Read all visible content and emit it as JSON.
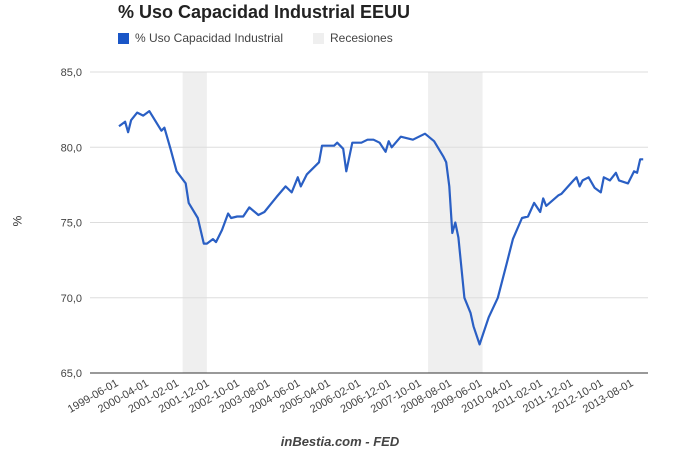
{
  "chart_data": {
    "type": "line",
    "title": "% Uso Capacidad Industrial EEUU",
    "xlabel": "",
    "ylabel": "%",
    "footer": "inBestia.com - FED",
    "ylim": [
      65,
      85
    ],
    "yticks": [
      "65,0",
      "70,0",
      "75,0",
      "80,0",
      "85,0"
    ],
    "ytick_values": [
      65,
      70,
      75,
      80,
      85
    ],
    "x_start": "1999-06",
    "x_end": "2013-11",
    "xticks": [
      "1999-06-01",
      "2000-04-01",
      "2001-02-01",
      "2001-12-01",
      "2002-10-01",
      "2003-08-01",
      "2004-06-01",
      "2005-04-01",
      "2006-02-01",
      "2006-12-01",
      "2007-10-01",
      "2008-08-01",
      "2009-06-01",
      "2010-04-01",
      "2011-02-01",
      "2011-12-01",
      "2012-10-01",
      "2013-08-01"
    ],
    "grid": true,
    "legend_placement": "top-left",
    "legend": [
      {
        "name": "% Uso Capacidad Industrial",
        "color": "#1a56c7"
      },
      {
        "name": "Recesiones",
        "color": "#efefef"
      }
    ],
    "recessions": [
      [
        "2001-03",
        "2001-11"
      ],
      [
        "2007-12",
        "2009-06"
      ]
    ],
    "series": [
      {
        "name": "% Uso Capacidad Industrial",
        "color": "#2a5fc4",
        "points": [
          [
            "1999-06",
            81.4
          ],
          [
            "1999-08",
            81.7
          ],
          [
            "1999-09",
            81.0
          ],
          [
            "1999-10",
            81.8
          ],
          [
            "1999-12",
            82.3
          ],
          [
            "2000-02",
            82.1
          ],
          [
            "2000-04",
            82.4
          ],
          [
            "2000-08",
            81.1
          ],
          [
            "2000-09",
            81.3
          ],
          [
            "2000-11",
            79.9
          ],
          [
            "2001-01",
            78.4
          ],
          [
            "2001-04",
            77.6
          ],
          [
            "2001-05",
            76.3
          ],
          [
            "2001-08",
            75.3
          ],
          [
            "2001-10",
            73.6
          ],
          [
            "2001-11",
            73.6
          ],
          [
            "2002-01",
            73.9
          ],
          [
            "2002-02",
            73.7
          ],
          [
            "2002-04",
            74.5
          ],
          [
            "2002-06",
            75.6
          ],
          [
            "2002-07",
            75.3
          ],
          [
            "2002-09",
            75.4
          ],
          [
            "2002-11",
            75.4
          ],
          [
            "2003-01",
            76.0
          ],
          [
            "2003-04",
            75.5
          ],
          [
            "2003-06",
            75.7
          ],
          [
            "2003-08",
            76.2
          ],
          [
            "2003-10",
            76.7
          ],
          [
            "2004-01",
            77.4
          ],
          [
            "2004-03",
            77.0
          ],
          [
            "2004-05",
            78.0
          ],
          [
            "2004-06",
            77.4
          ],
          [
            "2004-08",
            78.2
          ],
          [
            "2004-12",
            79.0
          ],
          [
            "2005-01",
            80.1
          ],
          [
            "2005-05",
            80.1
          ],
          [
            "2005-06",
            80.3
          ],
          [
            "2005-08",
            79.9
          ],
          [
            "2005-09",
            78.4
          ],
          [
            "2005-11",
            80.3
          ],
          [
            "2006-02",
            80.3
          ],
          [
            "2006-04",
            80.5
          ],
          [
            "2006-06",
            80.5
          ],
          [
            "2006-08",
            80.3
          ],
          [
            "2006-10",
            79.7
          ],
          [
            "2006-11",
            80.4
          ],
          [
            "2006-12",
            80.0
          ],
          [
            "2007-03",
            80.7
          ],
          [
            "2007-07",
            80.5
          ],
          [
            "2007-11",
            80.9
          ],
          [
            "2008-02",
            80.4
          ],
          [
            "2008-05",
            79.4
          ],
          [
            "2008-06",
            79.0
          ],
          [
            "2008-07",
            77.4
          ],
          [
            "2008-08",
            74.3
          ],
          [
            "2008-09",
            75.0
          ],
          [
            "2008-10",
            74.0
          ],
          [
            "2008-12",
            70.0
          ],
          [
            "2009-02",
            69.0
          ],
          [
            "2009-03",
            68.1
          ],
          [
            "2009-05",
            66.9
          ],
          [
            "2009-08",
            68.7
          ],
          [
            "2009-11",
            70.0
          ],
          [
            "2010-02",
            72.3
          ],
          [
            "2010-04",
            73.9
          ],
          [
            "2010-07",
            75.3
          ],
          [
            "2010-09",
            75.4
          ],
          [
            "2010-11",
            76.3
          ],
          [
            "2011-01",
            75.7
          ],
          [
            "2011-02",
            76.6
          ],
          [
            "2011-03",
            76.1
          ],
          [
            "2011-07",
            76.8
          ],
          [
            "2011-08",
            76.9
          ],
          [
            "2011-12",
            77.8
          ],
          [
            "2012-01",
            78.0
          ],
          [
            "2012-02",
            77.4
          ],
          [
            "2012-03",
            77.8
          ],
          [
            "2012-05",
            78.0
          ],
          [
            "2012-07",
            77.3
          ],
          [
            "2012-09",
            77.0
          ],
          [
            "2012-10",
            78.0
          ],
          [
            "2012-12",
            77.8
          ],
          [
            "2013-02",
            78.3
          ],
          [
            "2013-03",
            77.8
          ],
          [
            "2013-06",
            77.6
          ],
          [
            "2013-08",
            78.4
          ],
          [
            "2013-09",
            78.3
          ],
          [
            "2013-10",
            79.2
          ],
          [
            "2013-11",
            79.2
          ]
        ]
      }
    ]
  }
}
